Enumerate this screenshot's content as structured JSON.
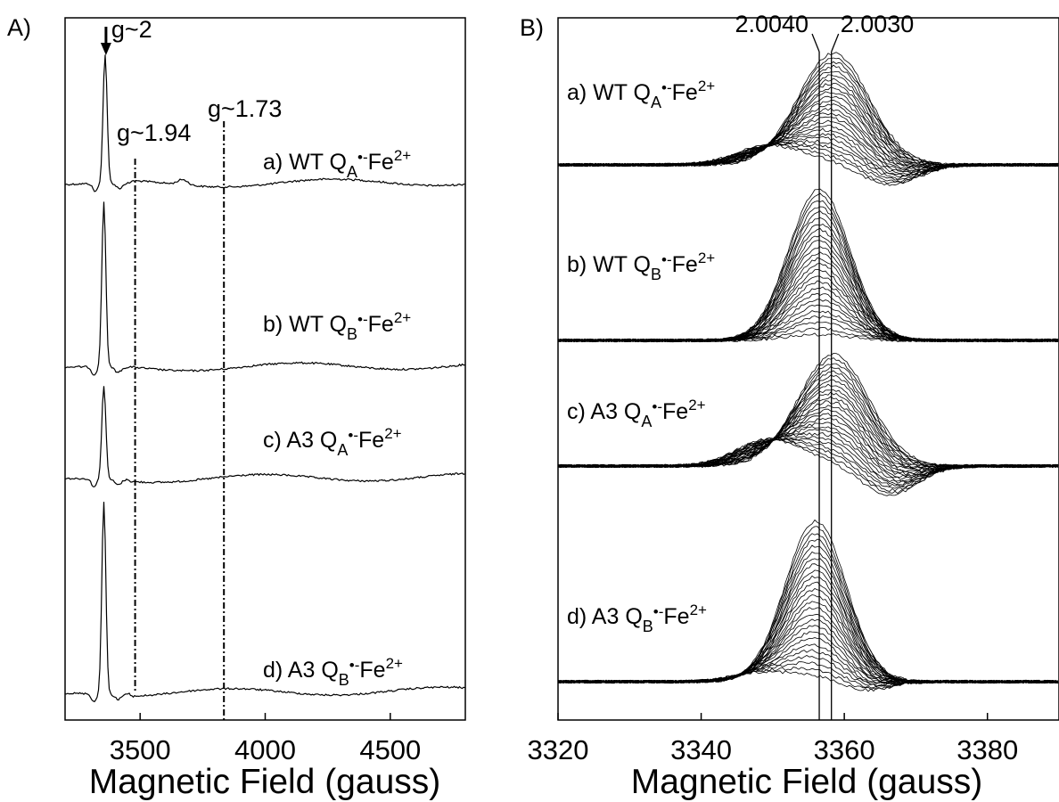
{
  "chart_data": [
    {
      "panel": "A)",
      "type": "line",
      "xlabel": "Magnetic Field (gauss)",
      "xlim": [
        3200,
        4800
      ],
      "x_ticks": [
        3500,
        4000,
        4500
      ],
      "annotations": [
        {
          "text": "g~2",
          "x": 3360
        },
        {
          "text": "g~1.94",
          "x": 3480
        },
        {
          "text": "g~1.73",
          "x": 3835
        }
      ],
      "series": [
        {
          "label_prefix": "a) WT Q",
          "label_sub": "A",
          "label_dot": "•-",
          "label_fe": "Fe",
          "label_sup": "2+",
          "peak_x": 3360,
          "peak_rel": 1.0
        },
        {
          "label_prefix": "b) WT Q",
          "label_sub": "B",
          "label_dot": "•-",
          "label_fe": "Fe",
          "label_sup": "2+",
          "peak_x": 3355,
          "peak_rel": 1.0
        },
        {
          "label_prefix": "c) A3 Q",
          "label_sub": "A",
          "label_dot": "•-",
          "label_fe": "Fe",
          "label_sup": "2+",
          "peak_x": 3355,
          "peak_rel": 0.55
        },
        {
          "label_prefix": "d) A3 Q",
          "label_sub": "B",
          "label_dot": "•-",
          "label_fe": "Fe",
          "label_sup": "2+",
          "peak_x": 3355,
          "peak_rel": 1.05
        }
      ]
    },
    {
      "panel": "B)",
      "type": "line",
      "xlabel": "Magnetic Field (gauss)",
      "xlim": [
        3320,
        3390
      ],
      "x_ticks": [
        3320,
        3340,
        3360,
        3380
      ],
      "annotations": [
        {
          "text": "2.0040",
          "x": 3356.5
        },
        {
          "text": "2.0030",
          "x": 3358.2
        }
      ],
      "series": [
        {
          "label_prefix": "a) WT Q",
          "label_sub": "A",
          "label_dot": "•-",
          "label_fe": "Fe",
          "label_sup": "2+",
          "center": 3358.5,
          "width": 7.0,
          "neg_rel": 0.25
        },
        {
          "label_prefix": "b) WT Q",
          "label_sub": "B",
          "label_dot": "•-",
          "label_fe": "Fe",
          "label_sup": "2+",
          "center": 3356.5,
          "width": 6.0,
          "neg_rel": 0.0
        },
        {
          "label_prefix": "c) A3 Q",
          "label_sub": "A",
          "label_dot": "•-",
          "label_fe": "Fe",
          "label_sup": "2+",
          "center": 3358.5,
          "width": 7.0,
          "neg_rel": 0.35
        },
        {
          "label_prefix": "d) A3 Q",
          "label_sub": "B",
          "label_dot": "•-",
          "label_fe": "Fe",
          "label_sup": "2+",
          "center": 3356.0,
          "width": 6.0,
          "neg_rel": 0.08
        }
      ]
    }
  ]
}
